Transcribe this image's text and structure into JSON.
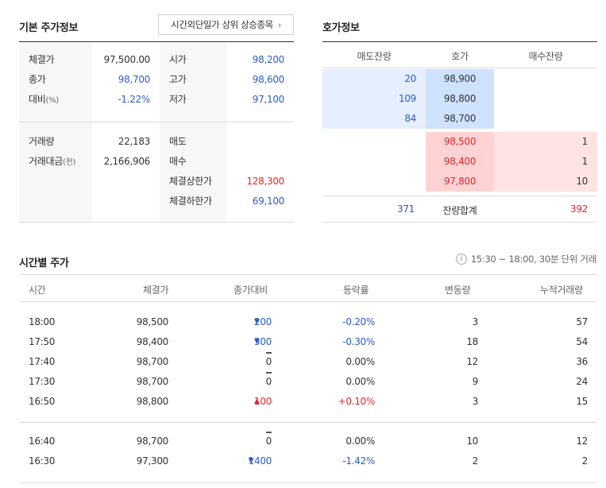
{
  "basic": {
    "title": "기본 주가정보",
    "afterhours_button": "시간외단일가 상위 상승종목",
    "rows_left": [
      {
        "label": "체결가",
        "unit": "",
        "value": "97,500.00",
        "color": "#333333"
      },
      {
        "label": "종가",
        "unit": "",
        "value": "98,700",
        "color": "#2a5dc5"
      },
      {
        "label": "대비",
        "unit": "(%)",
        "value": "-1.22%",
        "color": "#2a5dc5"
      },
      {
        "label": "거래량",
        "unit": "",
        "value": "22,183",
        "color": "#333333"
      },
      {
        "label": "거래대금",
        "unit": "(천)",
        "value": "2,166,906",
        "color": "#333333"
      }
    ],
    "rows_right": [
      {
        "label": "시가",
        "value": "98,200",
        "color": "#2a5dc5"
      },
      {
        "label": "고가",
        "value": "98,600",
        "color": "#2a5dc5"
      },
      {
        "label": "저가",
        "value": "97,100",
        "color": "#2a5dc5"
      },
      {
        "label": "매도",
        "value": "",
        "color": "#333333"
      },
      {
        "label": "매수",
        "value": "",
        "color": "#333333"
      },
      {
        "label": "체결상한가",
        "value": "128,300",
        "color": "#e3262b"
      },
      {
        "label": "체결하한가",
        "value": "69,100",
        "color": "#2a5dc5"
      }
    ]
  },
  "orderbook": {
    "title": "호가정보",
    "headers": {
      "ask_qty": "매도잔량",
      "price": "호가",
      "bid_qty": "매수잔량"
    },
    "asks": [
      {
        "qty": "20",
        "price": "98,900"
      },
      {
        "qty": "109",
        "price": "98,800"
      },
      {
        "qty": "84",
        "price": "98,700"
      }
    ],
    "bids": [
      {
        "price": "98,500",
        "qty": "1"
      },
      {
        "price": "98,400",
        "qty": "1"
      },
      {
        "price": "97,800",
        "qty": "10"
      }
    ],
    "total": {
      "ask": "371",
      "label": "잔량합계",
      "bid": "392"
    }
  },
  "timeprice": {
    "title": "시간별 주가",
    "note": "15:30 ~ 18:00, 30분 단위 거래",
    "info_icon": "i",
    "headers": [
      "시간",
      "체결가",
      "종가대비",
      "등락률",
      "변동량",
      "누적거래량"
    ],
    "rows": [
      {
        "time": "18:00",
        "price": "98,500",
        "dir": "down",
        "change": "200",
        "rate": "-0.20%",
        "vol": "3",
        "cum": "57"
      },
      {
        "time": "17:50",
        "price": "98,400",
        "dir": "down",
        "change": "300",
        "rate": "-0.30%",
        "vol": "18",
        "cum": "54"
      },
      {
        "time": "17:40",
        "price": "98,700",
        "dir": "flat",
        "change": "0",
        "rate": "0.00%",
        "vol": "12",
        "cum": "36"
      },
      {
        "time": "17:30",
        "price": "98,700",
        "dir": "flat",
        "change": "0",
        "rate": "0.00%",
        "vol": "9",
        "cum": "24"
      },
      {
        "time": "16:50",
        "price": "98,800",
        "dir": "up",
        "change": "100",
        "rate": "+0.10%",
        "vol": "3",
        "cum": "15"
      },
      {
        "time": "16:40",
        "price": "98,700",
        "dir": "flat",
        "change": "0",
        "rate": "0.00%",
        "vol": "10",
        "cum": "12"
      },
      {
        "time": "16:30",
        "price": "97,300",
        "dir": "down",
        "change": "1400",
        "rate": "-1.42%",
        "vol": "2",
        "cum": "2"
      }
    ]
  },
  "colors": {
    "down": "#2a5dc5",
    "up": "#e3262b",
    "flat": "#333333"
  }
}
